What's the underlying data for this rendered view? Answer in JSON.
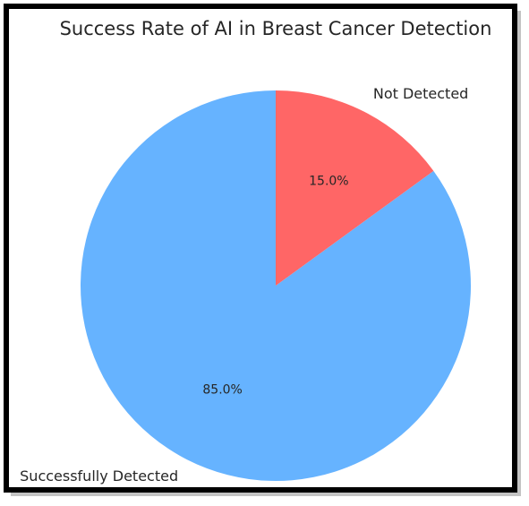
{
  "chart_data": {
    "type": "pie",
    "title": "Success Rate of AI in Breast Cancer Detection",
    "categories": [
      "Successfully Detected",
      "Not Detected"
    ],
    "values": [
      85,
      15
    ],
    "value_labels": [
      "85.0%",
      "15.0%"
    ],
    "colors": [
      "#66b3ff",
      "#ff6666"
    ]
  }
}
